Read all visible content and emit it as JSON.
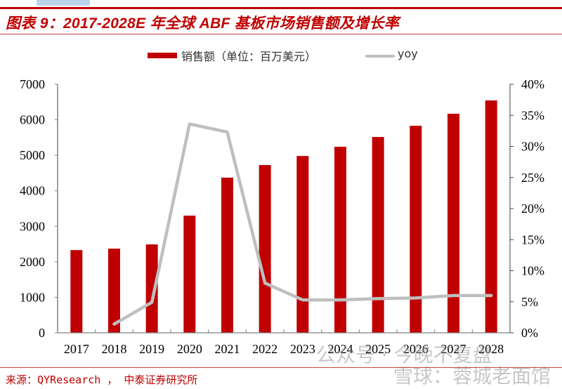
{
  "header": {
    "title": "图表 9：2017-2028E 年全球 ABF 基板市场销售额及增长率"
  },
  "legend": {
    "bar_label": "销售额（单位：百万美元）",
    "line_label": "yoy"
  },
  "footer": {
    "source": "来源：QYResearch ， 中泰证券研究所"
  },
  "watermark": {
    "line1": "公众号 · 今晚不复盘",
    "line2": "雪球：蓉城老面馆"
  },
  "colors": {
    "bar": "#c00000",
    "line": "#bfbfbf",
    "title": "#c00000",
    "axis": "#808080"
  },
  "chart_data": {
    "type": "bar",
    "title": "2017-2028E 年全球 ABF 基板市场销售额及增长率",
    "categories": [
      "2017",
      "2018",
      "2019",
      "2020",
      "2021",
      "2022",
      "2023",
      "2024",
      "2025",
      "2026",
      "2027",
      "2028"
    ],
    "series": [
      {
        "name": "销售额（单位：百万美元）",
        "type": "bar",
        "axis": "left",
        "values": [
          2330,
          2370,
          2490,
          3300,
          4370,
          4725,
          4980,
          5240,
          5515,
          5830,
          6170,
          6545
        ]
      },
      {
        "name": "yoy",
        "type": "line",
        "axis": "right",
        "unit": "%",
        "values": [
          null,
          1.4,
          4.9,
          33.6,
          32.3,
          8.0,
          5.3,
          5.3,
          5.5,
          5.6,
          6.0,
          6.0
        ]
      }
    ],
    "xlabel": "",
    "ylabel": "",
    "ylim": [
      0,
      7000
    ],
    "y_ticks": [
      0,
      1000,
      2000,
      3000,
      4000,
      5000,
      6000,
      7000
    ],
    "y2lim": [
      0,
      40
    ],
    "y2_ticks": [
      "0%",
      "5%",
      "10%",
      "15%",
      "20%",
      "25%",
      "30%",
      "35%",
      "40%"
    ],
    "grid": false,
    "legend_position": "top"
  }
}
